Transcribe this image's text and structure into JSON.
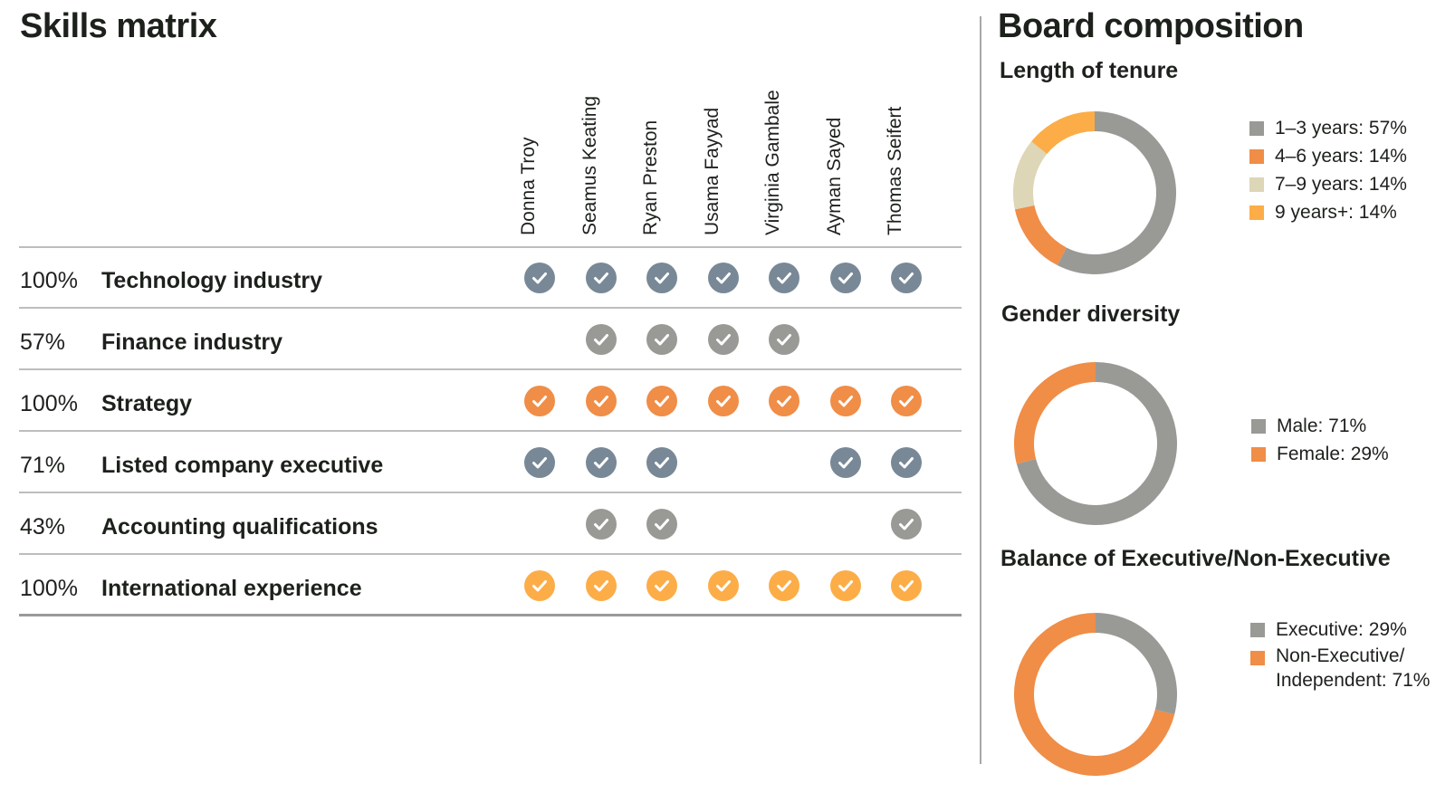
{
  "skills_matrix": {
    "title": "Skills matrix",
    "directors": [
      "Donna Troy",
      "Seamus Keating",
      "Ryan Preston",
      "Usama Fayyad",
      "Virginia Gambale",
      "Ayman Sayed",
      "Thomas Seifert"
    ],
    "rows": [
      {
        "pct": "100%",
        "label": "Technology industry",
        "color": "#788896",
        "checks": [
          true,
          true,
          true,
          true,
          true,
          true,
          true
        ]
      },
      {
        "pct": "57%",
        "label": "Finance industry",
        "color": "#999a96",
        "checks": [
          false,
          true,
          true,
          true,
          true,
          false,
          false
        ]
      },
      {
        "pct": "100%",
        "label": "Strategy",
        "color": "#f08d47",
        "checks": [
          true,
          true,
          true,
          true,
          true,
          true,
          true
        ]
      },
      {
        "pct": "71%",
        "label": "Listed company executive",
        "color": "#788896",
        "checks": [
          true,
          true,
          true,
          false,
          false,
          true,
          true
        ]
      },
      {
        "pct": "43%",
        "label": "Accounting qualifications",
        "color": "#999a96",
        "checks": [
          false,
          true,
          true,
          false,
          false,
          false,
          true
        ]
      },
      {
        "pct": "100%",
        "label": "International experience",
        "color": "#fcad48",
        "checks": [
          true,
          true,
          true,
          true,
          true,
          true,
          true
        ]
      }
    ]
  },
  "board_composition": {
    "title": "Board composition"
  },
  "chart_data": [
    {
      "type": "pie",
      "title": "Length of tenure",
      "slices": [
        {
          "label": "1–3 years: 57%",
          "value": 57,
          "color": "#999a96"
        },
        {
          "label": "4–6 years: 14%",
          "value": 14,
          "color": "#f08d47"
        },
        {
          "label": "7–9 years: 14%",
          "value": 14,
          "color": "#ddd6b7"
        },
        {
          "label": "9 years+: 14%",
          "value": 14,
          "color": "#fcad48"
        }
      ]
    },
    {
      "type": "pie",
      "title": "Gender diversity",
      "slices": [
        {
          "label": "Male: 71%",
          "value": 71,
          "color": "#999a96"
        },
        {
          "label": "Female: 29%",
          "value": 29,
          "color": "#f08d47"
        }
      ]
    },
    {
      "type": "pie",
      "title": "Balance of Executive/Non-Executive",
      "slices": [
        {
          "label": "Executive: 29%",
          "value": 29,
          "color": "#999a96"
        },
        {
          "label": "Non-Executive/\nIndependent: 71%",
          "value": 71,
          "color": "#f08d47"
        }
      ]
    }
  ]
}
